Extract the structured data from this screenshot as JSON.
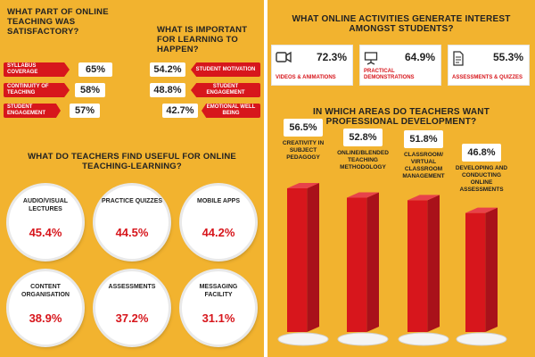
{
  "left": {
    "satisfactory": {
      "title": "WHAT PART OF ONLINE TEACHING WAS SATISFACTORY?",
      "items": [
        {
          "label": "SYLLABUS COVERAGE",
          "value": "65%"
        },
        {
          "label": "CONTINUITY OF TEACHING",
          "value": "58%"
        },
        {
          "label": "STUDENT ENGAGEMENT",
          "value": "57%"
        }
      ]
    },
    "important": {
      "title": "WHAT IS IMPORTANT FOR LEARNING TO HAPPEN?",
      "items": [
        {
          "label": "STUDENT MOTIVATION",
          "value": "54.2%"
        },
        {
          "label": "STUDENT ENGAGEMENT",
          "value": "48.8%"
        },
        {
          "label": "EMOTIONAL WELL BEING",
          "value": "42.7%"
        }
      ]
    },
    "useful": {
      "title": "WHAT DO TEACHERS FIND USEFUL FOR ONLINE TEACHING-LEARNING?",
      "items": [
        {
          "label": "AUDIO/VISUAL LECTURES",
          "value": "45.4%"
        },
        {
          "label": "PRACTICE QUIZZES",
          "value": "44.5%"
        },
        {
          "label": "MOBILE APPS",
          "value": "44.2%"
        },
        {
          "label": "CONTENT ORGANISATION",
          "value": "38.9%"
        },
        {
          "label": "ASSESSMENTS",
          "value": "37.2%"
        },
        {
          "label": "MESSAGING FACILITY",
          "value": "31.1%"
        }
      ]
    }
  },
  "right": {
    "activities": {
      "title": "WHAT ONLINE ACTIVITIES GENERATE INTEREST AMONGST STUDENTS?",
      "items": [
        {
          "label": "VIDEOS & ANIMATIONS",
          "value": "72.3%",
          "icon": "video-camera-icon"
        },
        {
          "label": "PRACTICAL DEMONSTRATIONS",
          "value": "64.9%",
          "icon": "presentation-board-icon"
        },
        {
          "label": "ASSESSMENTS & QUIZZES",
          "value": "55.3%",
          "icon": "document-icon"
        }
      ]
    },
    "development_title": "IN WHICH AREAS DO TEACHERS WANT PROFESSIONAL DEVELOPMENT?"
  },
  "colors": {
    "background": "#F2B32F",
    "accent": "#D7161C",
    "bar_dark": "#A9111A"
  },
  "chart_data": [
    {
      "type": "bar",
      "title": "WHAT PART OF ONLINE TEACHING WAS SATISFACTORY?",
      "categories": [
        "SYLLABUS COVERAGE",
        "CONTINUITY OF TEACHING",
        "STUDENT ENGAGEMENT"
      ],
      "values": [
        65,
        58,
        57
      ]
    },
    {
      "type": "bar",
      "title": "WHAT IS IMPORTANT FOR LEARNING TO HAPPEN?",
      "categories": [
        "STUDENT MOTIVATION",
        "STUDENT ENGAGEMENT",
        "EMOTIONAL WELL BEING"
      ],
      "values": [
        54.2,
        48.8,
        42.7
      ]
    },
    {
      "type": "table",
      "title": "WHAT DO TEACHERS FIND USEFUL FOR ONLINE TEACHING-LEARNING?",
      "categories": [
        "AUDIO/VISUAL LECTURES",
        "PRACTICE QUIZZES",
        "MOBILE APPS",
        "CONTENT ORGANISATION",
        "ASSESSMENTS",
        "MESSAGING FACILITY"
      ],
      "values": [
        45.4,
        44.5,
        44.2,
        38.9,
        37.2,
        31.1
      ]
    },
    {
      "type": "table",
      "title": "WHAT ONLINE ACTIVITIES GENERATE INTEREST AMONGST STUDENTS?",
      "categories": [
        "VIDEOS & ANIMATIONS",
        "PRACTICAL DEMONSTRATIONS",
        "ASSESSMENTS & QUIZZES"
      ],
      "values": [
        72.3,
        64.9,
        55.3
      ]
    },
    {
      "type": "bar",
      "title": "IN WHICH AREAS DO TEACHERS WANT PROFESSIONAL DEVELOPMENT?",
      "categories": [
        "CREATIVITY IN SUBJECT PEDAGOGY",
        "ONLINE/BLENDED TEACHING METHODOLOGY",
        "CLASSROOM/ VIRTUAL CLASSROOM MANAGEMENT",
        "DEVELOPING AND CONDUCTING ONLINE ASSESSMENTS"
      ],
      "values": [
        56.5,
        52.8,
        51.8,
        46.8
      ],
      "value_labels": [
        "56.5%",
        "52.8%",
        "51.8%",
        "46.8%"
      ]
    }
  ]
}
